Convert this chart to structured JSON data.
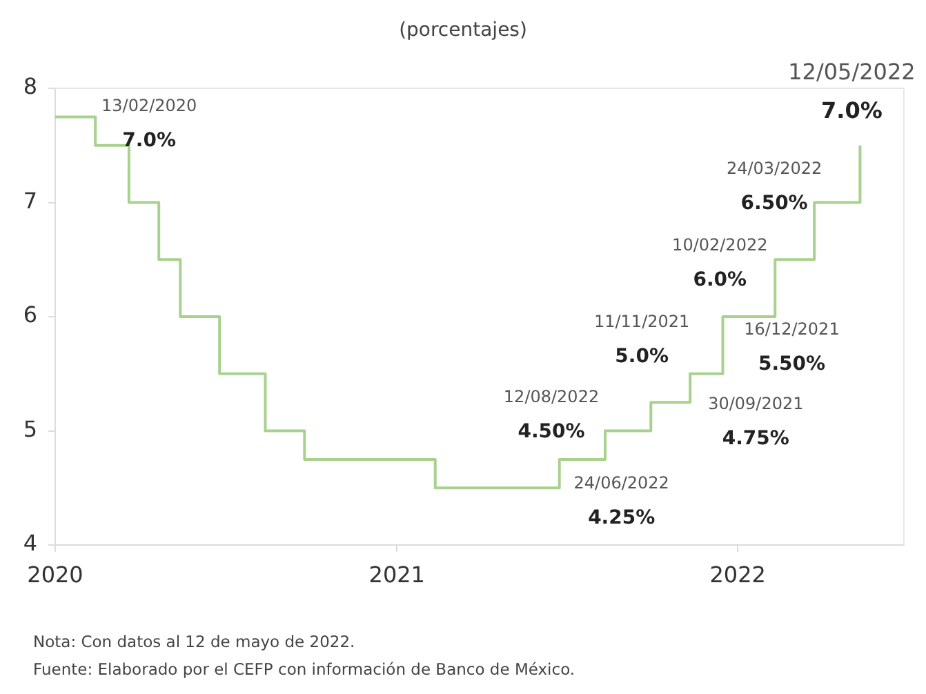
{
  "chart_data": {
    "type": "step",
    "subtitle": "(porcentajes)",
    "x": [
      "2020-01-01",
      "2020-02-13",
      "2020-03-20",
      "2020-04-21",
      "2020-05-14",
      "2020-06-25",
      "2020-08-13",
      "2020-09-24",
      "2021-02-11",
      "2021-06-24",
      "2021-08-12",
      "2021-09-30",
      "2021-11-11",
      "2021-12-16",
      "2022-02-10",
      "2022-03-24",
      "2022-05-12"
    ],
    "values": [
      7.75,
      7.5,
      7.0,
      6.5,
      6.0,
      5.5,
      5.0,
      4.75,
      4.5,
      4.75,
      5.0,
      5.25,
      5.5,
      6.0,
      6.5,
      7.0,
      7.5
    ],
    "color": "#a9d18e",
    "xlim": [
      "2020-01-01",
      "2022-06-28"
    ],
    "xticks": [
      "2020",
      "2021",
      "2022"
    ],
    "ylim": [
      4,
      8
    ],
    "yticks": [
      4,
      5,
      6,
      7,
      8
    ],
    "grid": false,
    "legend": false,
    "marker": "none",
    "line_style": "solid",
    "annotations": [
      {
        "text": "13/02/2020\n7.0%",
        "x": "2020-02-13",
        "y": 7.5
      },
      {
        "text": "24/06/2022\n4.25%",
        "x": "2021-06-24",
        "y": 4.75
      },
      {
        "text": "12/08/2022\n4.50%",
        "x": "2021-08-12",
        "y": 5.0
      },
      {
        "text": "30/09/2021\n4.75%",
        "x": "2021-09-30",
        "y": 5.25
      },
      {
        "text": "11/11/2021\n5.0%",
        "x": "2021-11-11",
        "y": 5.5
      },
      {
        "text": "16/12/2021\n5.50%",
        "x": "2021-12-16",
        "y": 6.0
      },
      {
        "text": "10/02/2022\n6.0%",
        "x": "2022-02-10",
        "y": 6.5
      },
      {
        "text": "24/03/2022\n6.50%",
        "x": "2022-03-24",
        "y": 7.0
      },
      {
        "text": "12/05/2022\n7.0%",
        "x": "2022-05-12",
        "y": 7.5
      },
      "Nota: Con datos al 12 de mayo de 2022.",
      "Fuente: Elaborado por el CEFP con información de Banco de México."
    ]
  }
}
